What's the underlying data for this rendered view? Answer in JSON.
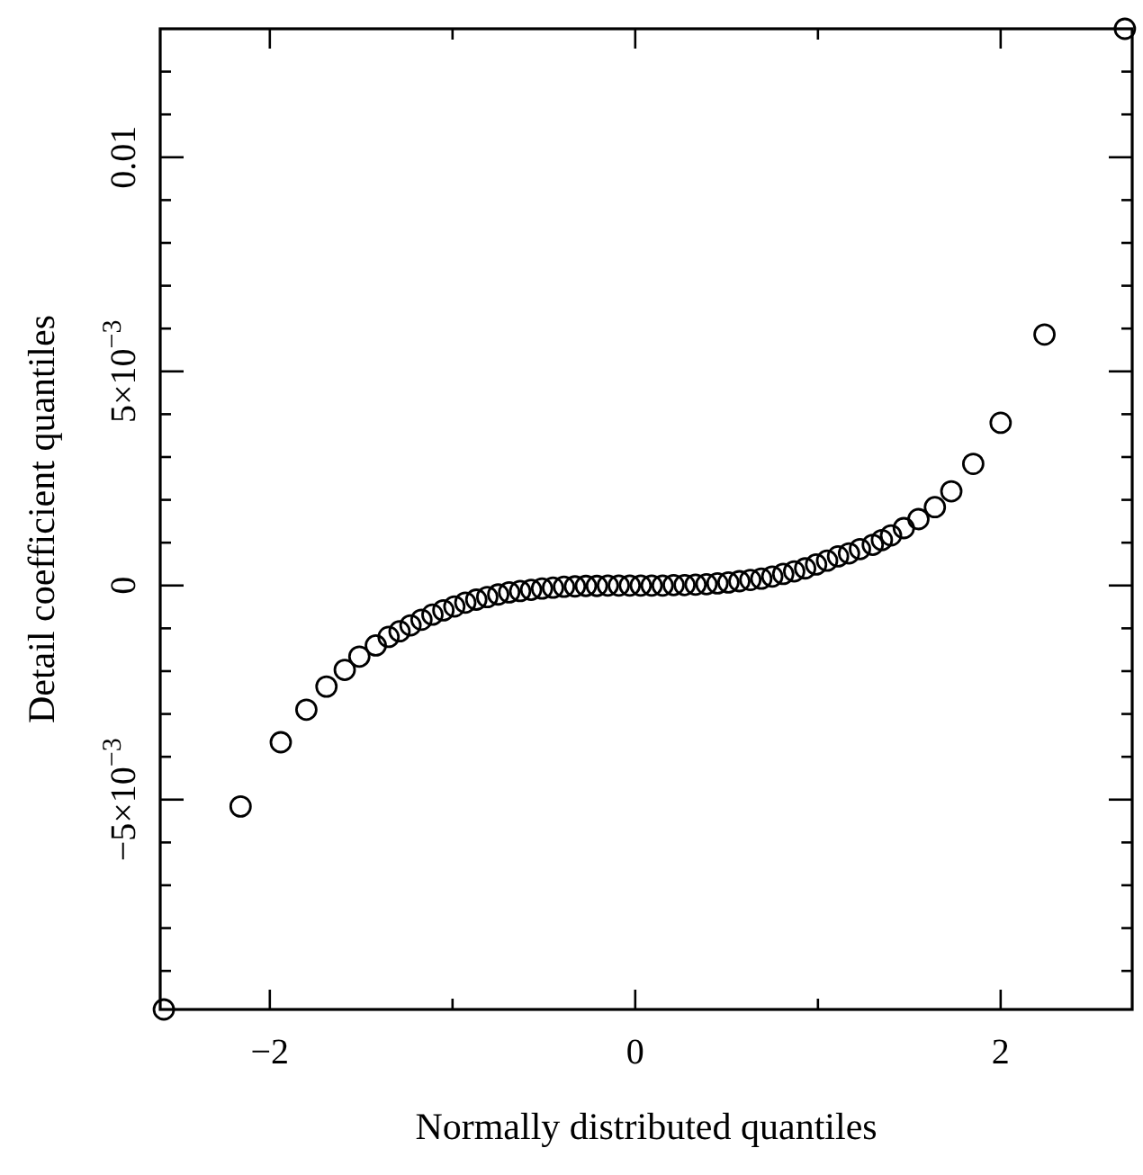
{
  "chart_data": {
    "type": "scatter",
    "xlabel": "Normally distributed quantiles",
    "ylabel": "Detail coefficient quantiles",
    "marker": "circle",
    "grid": false,
    "xlim": [
      -2.6,
      2.72
    ],
    "ylim": [
      -0.0099,
      0.013
    ],
    "xticks": [
      -2,
      {
        "value": -1,
        "label": null
      },
      0,
      {
        "value": 1,
        "label": null
      },
      2
    ],
    "yticks": [
      {
        "value": -0.009,
        "label": null
      },
      {
        "value": -0.008,
        "label": null
      },
      {
        "value": -0.007,
        "label": null
      },
      {
        "value": -0.006,
        "label": null
      },
      {
        "value": -0.005,
        "label": "−5×10$^{−3}$"
      },
      {
        "value": -0.004,
        "label": null
      },
      {
        "value": -0.003,
        "label": null
      },
      {
        "value": -0.002,
        "label": null
      },
      {
        "value": -0.001,
        "label": null
      },
      0,
      {
        "value": 0.001,
        "label": null
      },
      {
        "value": 0.002,
        "label": null
      },
      {
        "value": 0.003,
        "label": null
      },
      {
        "value": 0.004,
        "label": null
      },
      {
        "value": 0.005,
        "label": "5×10$^{−3}$"
      },
      {
        "value": 0.006,
        "label": null
      },
      {
        "value": 0.007,
        "label": null
      },
      {
        "value": 0.008,
        "label": null
      },
      {
        "value": 0.009,
        "label": null
      },
      {
        "value": 0.01,
        "label": "0.01"
      },
      {
        "value": 0.011,
        "label": null
      },
      {
        "value": 0.012,
        "label": null
      }
    ],
    "series": [
      {
        "color": "#000000",
        "x": [
          -2.58,
          -2.16,
          -1.94,
          -1.8,
          -1.69,
          -1.59,
          -1.51,
          -1.42,
          -1.35,
          -1.29,
          -1.23,
          -1.17,
          -1.11,
          -1.05,
          -0.99,
          -0.93,
          -0.87,
          -0.81,
          -0.75,
          -0.69,
          -0.63,
          -0.57,
          -0.51,
          -0.45,
          -0.39,
          -0.33,
          -0.27,
          -0.21,
          -0.15,
          -0.09,
          -0.03,
          0.03,
          0.09,
          0.15,
          0.21,
          0.27,
          0.33,
          0.39,
          0.45,
          0.51,
          0.57,
          0.63,
          0.69,
          0.75,
          0.81,
          0.87,
          0.93,
          0.99,
          1.05,
          1.11,
          1.17,
          1.23,
          1.3,
          1.35,
          1.4,
          1.47,
          1.55,
          1.64,
          1.73,
          1.85,
          2.0,
          2.24,
          2.68
        ],
        "values": [
          -0.0099,
          -0.00516,
          -0.00366,
          -0.0029,
          -0.00236,
          -0.00197,
          -0.00166,
          -0.0014,
          -0.0012,
          -0.00107,
          -0.00093,
          -0.0008,
          -0.00068,
          -0.00058,
          -0.00049,
          -0.0004,
          -0.00033,
          -0.00027,
          -0.00021,
          -0.00016,
          -0.00013,
          -0.0001,
          -7e-05,
          -5e-05,
          -3e-05,
          -2e-05,
          -1e-05,
          -1e-05,
          0,
          0,
          0,
          0,
          0,
          0,
          1e-05,
          1e-05,
          2e-05,
          3e-05,
          5e-05,
          7e-05,
          0.0001,
          0.00013,
          0.00016,
          0.00021,
          0.00027,
          0.00033,
          0.0004,
          0.00049,
          0.00058,
          0.00068,
          0.00075,
          0.00085,
          0.00095,
          0.00106,
          0.00117,
          0.00134,
          0.00155,
          0.00183,
          0.0022,
          0.00284,
          0.0038,
          0.00586,
          0.013
        ]
      }
    ]
  }
}
